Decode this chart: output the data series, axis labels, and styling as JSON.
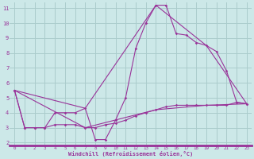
{
  "bg_color": "#cce8e8",
  "grid_color": "#aacccc",
  "line_color": "#993399",
  "axis_line_color": "#993399",
  "xlim": [
    -0.5,
    23.5
  ],
  "ylim": [
    1.8,
    11.4
  ],
  "yticks": [
    2,
    3,
    4,
    5,
    6,
    7,
    8,
    9,
    10,
    11
  ],
  "xticks": [
    0,
    1,
    2,
    3,
    4,
    5,
    6,
    7,
    8,
    9,
    10,
    11,
    12,
    13,
    14,
    15,
    16,
    17,
    18,
    19,
    20,
    21,
    22,
    23
  ],
  "xlabel": "Windchill (Refroidissement éolien,°C)",
  "series1_x": [
    0,
    1,
    2,
    3,
    4,
    5,
    6,
    7,
    8,
    9,
    10,
    11,
    12,
    13,
    14,
    15,
    16,
    17,
    18,
    19,
    20,
    21,
    22,
    23
  ],
  "series1_y": [
    5.5,
    3.0,
    3.0,
    3.0,
    4.0,
    4.0,
    4.0,
    4.3,
    2.2,
    2.2,
    3.5,
    5.0,
    8.3,
    10.0,
    11.2,
    11.2,
    9.3,
    9.2,
    8.7,
    8.5,
    8.1,
    6.8,
    4.7,
    4.6
  ],
  "series2_x": [
    0,
    1,
    2,
    3,
    4,
    5,
    6,
    7,
    8,
    9,
    10,
    11,
    12,
    13,
    14,
    15,
    16,
    17,
    18,
    19,
    20,
    21,
    22,
    23
  ],
  "series2_y": [
    5.5,
    3.0,
    3.0,
    3.0,
    3.2,
    3.2,
    3.2,
    3.0,
    3.0,
    3.2,
    3.3,
    3.5,
    3.8,
    4.0,
    4.2,
    4.4,
    4.5,
    4.5,
    4.5,
    4.5,
    4.5,
    4.5,
    4.7,
    4.6
  ],
  "series3_x": [
    0,
    7,
    14,
    19,
    23
  ],
  "series3_y": [
    5.5,
    4.3,
    11.2,
    8.5,
    4.6
  ],
  "series4_x": [
    0,
    7,
    14,
    19,
    23
  ],
  "series4_y": [
    5.5,
    3.0,
    4.2,
    4.5,
    4.6
  ]
}
